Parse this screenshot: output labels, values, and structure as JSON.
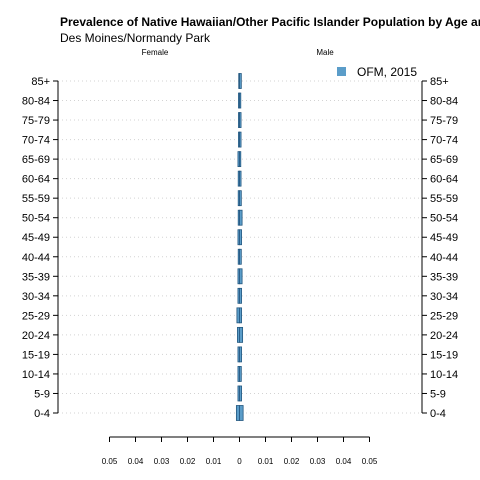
{
  "chart_data": {
    "type": "bar",
    "orientation": "horizontal-pyramid",
    "title": "Prevalence of Native Hawaiian/Other Pacific Islander Population by Age and Sex",
    "subtitle": "Des Moines/Normandy Park",
    "left_label": "Female",
    "right_label": "Male",
    "categories": [
      "0-4",
      "5-9",
      "10-14",
      "15-19",
      "20-24",
      "25-29",
      "30-34",
      "35-39",
      "40-44",
      "45-49",
      "50-54",
      "55-59",
      "60-64",
      "65-69",
      "70-74",
      "75-79",
      "80-84",
      "85+"
    ],
    "x_ticks": [
      "0.05",
      "0.04",
      "0.03",
      "0.02",
      "0.01",
      "0",
      "0.01",
      "0.02",
      "0.03",
      "0.04",
      "0.05"
    ],
    "xlim": [
      -0.05,
      0.05
    ],
    "series": [
      {
        "name": "OFM, 2015",
        "female": [
          0.0012,
          0.0006,
          0.0006,
          0.0006,
          0.0008,
          0.001,
          0.0006,
          0.0006,
          0.0005,
          0.0006,
          0.0005,
          0.0005,
          0.0005,
          0.0006,
          0.0004,
          0.0004,
          0.0004,
          0.0003
        ],
        "male": [
          0.0014,
          0.0008,
          0.0007,
          0.0008,
          0.0012,
          0.0008,
          0.0008,
          0.001,
          0.0007,
          0.0008,
          0.001,
          0.0007,
          0.0006,
          0.0005,
          0.0006,
          0.0006,
          0.0005,
          0.0007
        ]
      }
    ],
    "colors": {
      "bar": "#5b9dc9",
      "bar_edge": "#23577f",
      "grid": "#d3d3d3",
      "axis": "#000000"
    },
    "grid": true,
    "legend_position": "top-right"
  }
}
